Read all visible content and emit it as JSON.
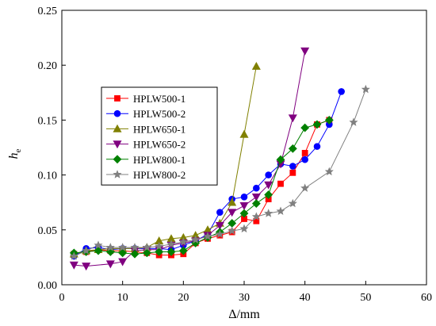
{
  "chart_data": {
    "type": "line",
    "xlabel": "Δ/mm",
    "ylabel": "he",
    "ylabel_main": "h",
    "ylabel_sub": "e",
    "xlim": [
      0,
      60
    ],
    "ylim": [
      0,
      0.25
    ],
    "xticks": [
      0,
      10,
      20,
      30,
      40,
      50,
      60
    ],
    "xtick_labels": [
      "0",
      "10",
      "20",
      "30",
      "40",
      "50",
      "60"
    ],
    "yticks": [
      0,
      0.05,
      0.1,
      0.15,
      0.2,
      0.25
    ],
    "ytick_labels": [
      "0.00",
      "0.05",
      "0.10",
      "0.15",
      "0.20",
      "0.25"
    ],
    "grid": false,
    "legend_position": "left-center",
    "series": [
      {
        "name": "HPLW500-1",
        "color": "#ff0000",
        "marker": "square",
        "points": [
          [
            2,
            0.028
          ],
          [
            4,
            0.03
          ],
          [
            6,
            0.032
          ],
          [
            8,
            0.031
          ],
          [
            10,
            0.031
          ],
          [
            12,
            0.03
          ],
          [
            14,
            0.029
          ],
          [
            16,
            0.027
          ],
          [
            18,
            0.027
          ],
          [
            20,
            0.028
          ],
          [
            22,
            0.038
          ],
          [
            24,
            0.042
          ],
          [
            26,
            0.045
          ],
          [
            28,
            0.048
          ],
          [
            30,
            0.06
          ],
          [
            32,
            0.058
          ],
          [
            34,
            0.078
          ],
          [
            36,
            0.092
          ],
          [
            38,
            0.102
          ],
          [
            40,
            0.12
          ],
          [
            42,
            0.146
          ],
          [
            44,
            0.15
          ]
        ]
      },
      {
        "name": "HPLW500-2",
        "color": "#0000ff",
        "marker": "circle",
        "points": [
          [
            2,
            0.026
          ],
          [
            4,
            0.033
          ],
          [
            6,
            0.034
          ],
          [
            8,
            0.032
          ],
          [
            10,
            0.033
          ],
          [
            12,
            0.033
          ],
          [
            14,
            0.033
          ],
          [
            16,
            0.033
          ],
          [
            18,
            0.032
          ],
          [
            20,
            0.036
          ],
          [
            22,
            0.04
          ],
          [
            24,
            0.046
          ],
          [
            26,
            0.066
          ],
          [
            28,
            0.078
          ],
          [
            30,
            0.08
          ],
          [
            32,
            0.088
          ],
          [
            34,
            0.1
          ],
          [
            36,
            0.11
          ],
          [
            38,
            0.108
          ],
          [
            40,
            0.114
          ],
          [
            42,
            0.126
          ],
          [
            44,
            0.146
          ],
          [
            46,
            0.176
          ]
        ]
      },
      {
        "name": "HPLW650-1",
        "color": "#808000",
        "marker": "triangle-up",
        "points": [
          [
            2,
            0.028
          ],
          [
            4,
            0.031
          ],
          [
            6,
            0.032
          ],
          [
            8,
            0.033
          ],
          [
            10,
            0.033
          ],
          [
            12,
            0.033
          ],
          [
            14,
            0.034
          ],
          [
            16,
            0.04
          ],
          [
            18,
            0.042
          ],
          [
            20,
            0.043
          ],
          [
            22,
            0.045
          ],
          [
            24,
            0.05
          ],
          [
            26,
            0.056
          ],
          [
            28,
            0.075
          ],
          [
            30,
            0.137
          ],
          [
            32,
            0.199
          ]
        ]
      },
      {
        "name": "HPLW650-2",
        "color": "#800080",
        "marker": "triangle-down",
        "points": [
          [
            2,
            0.018
          ],
          [
            4,
            0.017
          ],
          [
            8,
            0.019
          ],
          [
            10,
            0.021
          ],
          [
            12,
            0.031
          ],
          [
            14,
            0.032
          ],
          [
            16,
            0.032
          ],
          [
            18,
            0.036
          ],
          [
            20,
            0.038
          ],
          [
            22,
            0.04
          ],
          [
            24,
            0.045
          ],
          [
            26,
            0.054
          ],
          [
            28,
            0.066
          ],
          [
            30,
            0.072
          ],
          [
            32,
            0.08
          ],
          [
            34,
            0.091
          ],
          [
            36,
            0.11
          ],
          [
            38,
            0.152
          ],
          [
            40,
            0.213
          ]
        ]
      },
      {
        "name": "HPLW800-1",
        "color": "#008000",
        "marker": "diamond",
        "points": [
          [
            2,
            0.029
          ],
          [
            4,
            0.03
          ],
          [
            6,
            0.031
          ],
          [
            8,
            0.03
          ],
          [
            10,
            0.029
          ],
          [
            12,
            0.028
          ],
          [
            14,
            0.029
          ],
          [
            16,
            0.03
          ],
          [
            18,
            0.03
          ],
          [
            20,
            0.031
          ],
          [
            22,
            0.038
          ],
          [
            24,
            0.043
          ],
          [
            26,
            0.048
          ],
          [
            28,
            0.056
          ],
          [
            30,
            0.065
          ],
          [
            32,
            0.074
          ],
          [
            34,
            0.082
          ],
          [
            36,
            0.114
          ],
          [
            38,
            0.124
          ],
          [
            40,
            0.143
          ],
          [
            42,
            0.146
          ],
          [
            44,
            0.15
          ]
        ]
      },
      {
        "name": "HPLW800-2",
        "color": "#808080",
        "marker": "star",
        "points": [
          [
            2,
            0.026
          ],
          [
            4,
            0.031
          ],
          [
            6,
            0.036
          ],
          [
            8,
            0.034
          ],
          [
            10,
            0.034
          ],
          [
            12,
            0.034
          ],
          [
            14,
            0.034
          ],
          [
            16,
            0.035
          ],
          [
            18,
            0.037
          ],
          [
            20,
            0.039
          ],
          [
            22,
            0.041
          ],
          [
            24,
            0.044
          ],
          [
            26,
            0.046
          ],
          [
            28,
            0.049
          ],
          [
            30,
            0.051
          ],
          [
            32,
            0.062
          ],
          [
            34,
            0.065
          ],
          [
            36,
            0.067
          ],
          [
            38,
            0.074
          ],
          [
            40,
            0.088
          ],
          [
            44,
            0.103
          ],
          [
            48,
            0.148
          ],
          [
            50,
            0.178
          ]
        ]
      }
    ]
  }
}
